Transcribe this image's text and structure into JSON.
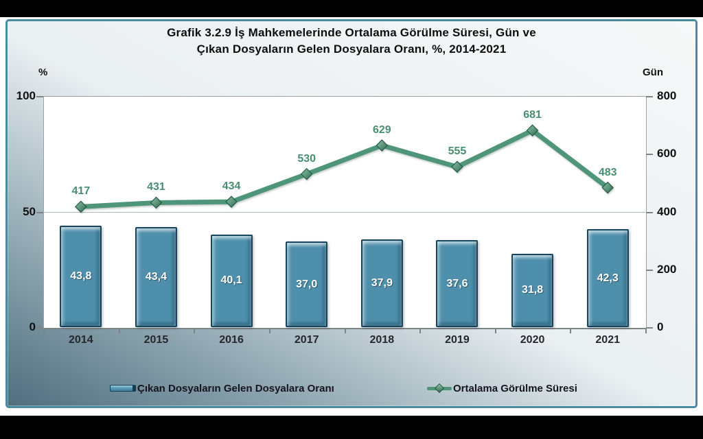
{
  "title": {
    "line1": "Grafik 3.2.9 İş Mahkemelerinde Ortalama Görülme Süresi, Gün ve",
    "line2": "Çıkan Dosyaların Gelen Dosyalara Oranı, %, 2014-2021"
  },
  "left_axis": {
    "unit": "%",
    "tick_labels": [
      "100",
      "50",
      "0"
    ],
    "tick_values": [
      100,
      50,
      0
    ]
  },
  "right_axis": {
    "unit": "Gün",
    "tick_labels": [
      "800",
      "600",
      "400",
      "200",
      "0"
    ],
    "tick_values": [
      800,
      600,
      400,
      200,
      0
    ]
  },
  "chart_data": {
    "type": "bar",
    "subtype": "bar-and-line-combo",
    "title": "Grafik 3.2.9 İş Mahkemelerinde Ortalama Görülme Süresi, Gün ve Çıkan Dosyaların Gelen Dosyalara Oranı, %, 2014-2021",
    "categories": [
      "2014",
      "2015",
      "2016",
      "2017",
      "2018",
      "2019",
      "2020",
      "2021"
    ],
    "series": [
      {
        "name": "Çıkan Dosyaların Gelen Dosyalara Oranı",
        "type": "bar",
        "axis": "left",
        "values": [
          43.8,
          43.4,
          40.1,
          37.0,
          37.9,
          37.6,
          31.8,
          42.3
        ],
        "labels": [
          "43,8",
          "43,4",
          "40,1",
          "37,0",
          "37,9",
          "37,6",
          "31,8",
          "42,3"
        ],
        "color": "#4e8fac"
      },
      {
        "name": "Ortalama Görülme Süresi",
        "type": "line",
        "axis": "right",
        "values": [
          417,
          431,
          434,
          530,
          629,
          555,
          681,
          483
        ],
        "labels": [
          "417",
          "431",
          "434",
          "530",
          "629",
          "555",
          "681",
          "483"
        ],
        "color": "#4f9579"
      }
    ],
    "left_ylim": [
      0,
      100
    ],
    "right_ylim": [
      0,
      800
    ],
    "xlabel": "",
    "ylabel_left": "%",
    "ylabel_right": "Gün",
    "grid": "horizontal gridline at left-axis 50 (right-axis 400)",
    "legend_position": "bottom"
  },
  "legend": [
    {
      "label": "Çıkan Dosyaların Gelen Dosyalara Oranı",
      "marker": "bar-swatch"
    },
    {
      "label": "Ortalama Görülme Süresi",
      "marker": "line-with-diamond"
    }
  ],
  "colors": {
    "bar_fill": "#4e8fac",
    "bar_border": "#16445c",
    "line": "#4f9579",
    "line_label": "#478f6f",
    "panel_border": "#4a8aa0",
    "panel_gradient_dark": "#4f6e7e",
    "frame_bars": "#000000"
  }
}
